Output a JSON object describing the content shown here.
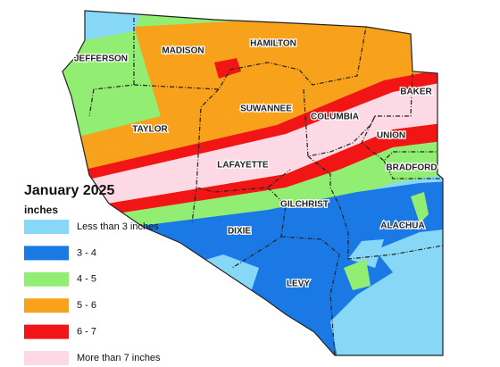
{
  "title": "January 2025",
  "unit": "inches",
  "legend": [
    {
      "label": "Less than 3 inches",
      "color": "#87d8f7"
    },
    {
      "label": "3 - 4",
      "color": "#1b79e6"
    },
    {
      "label": "4 - 5",
      "color": "#92ee72"
    },
    {
      "label": "5 - 6",
      "color": "#f8a21c"
    },
    {
      "label": "6 - 7",
      "color": "#f21515"
    },
    {
      "label": "More than 7 inches",
      "color": "#fcd9e4"
    }
  ],
  "counties": [
    "JEFFERSON",
    "MADISON",
    "HAMILTON",
    "SUWANNEE",
    "COLUMBIA",
    "BAKER",
    "TAYLOR",
    "UNION",
    "LAFAYETTE",
    "BRADFORD",
    "GILCHRIST",
    "ALACHUA",
    "DIXIE",
    "LEVY"
  ]
}
